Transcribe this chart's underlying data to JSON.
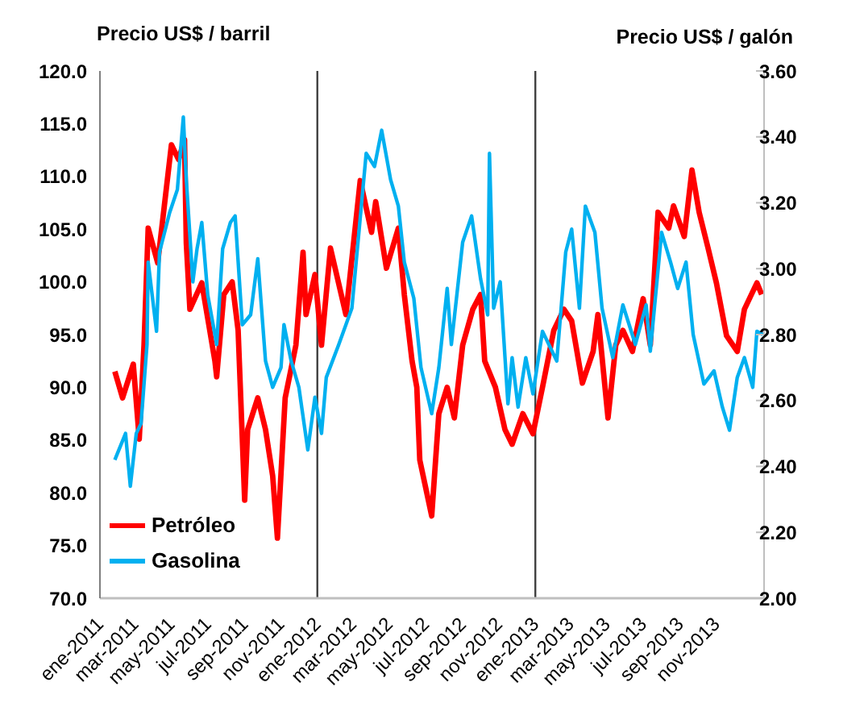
{
  "chart_data": {
    "type": "line",
    "ylabel": "Precio US$ / barril",
    "y2label": "Precio US$ / galón",
    "xlim": [
      "2011-01-01",
      "2014-01-20"
    ],
    "xticks": [
      {
        "value": "2011-01",
        "label": "ene-2011"
      },
      {
        "value": "2011-03",
        "label": "mar-2011"
      },
      {
        "value": "2011-05",
        "label": "may-2011"
      },
      {
        "value": "2011-07",
        "label": "jul-2011"
      },
      {
        "value": "2011-09",
        "label": "sep-2011"
      },
      {
        "value": "2011-11",
        "label": "nov-2011"
      },
      {
        "value": "2012-01",
        "label": "ene-2012"
      },
      {
        "value": "2012-03",
        "label": "mar-2012"
      },
      {
        "value": "2012-05",
        "label": "may-2012"
      },
      {
        "value": "2012-07",
        "label": "jul-2012"
      },
      {
        "value": "2012-09",
        "label": "sep-2012"
      },
      {
        "value": "2012-11",
        "label": "nov-2012"
      },
      {
        "value": "2013-01",
        "label": "ene-2013"
      },
      {
        "value": "2013-03",
        "label": "mar-2013"
      },
      {
        "value": "2013-05",
        "label": "may-2013"
      },
      {
        "value": "2013-07",
        "label": "jul-2013"
      },
      {
        "value": "2013-09",
        "label": "sep-2013"
      },
      {
        "value": "2013-11",
        "label": "nov-2013"
      }
    ],
    "ylim": [
      70,
      120
    ],
    "yticks": [
      {
        "value": 70,
        "label": "70.0"
      },
      {
        "value": 75,
        "label": "75.0"
      },
      {
        "value": 80,
        "label": "80.0"
      },
      {
        "value": 85,
        "label": "85.0"
      },
      {
        "value": 90,
        "label": "90.0"
      },
      {
        "value": 95,
        "label": "95.0"
      },
      {
        "value": 100,
        "label": "100.0"
      },
      {
        "value": 105,
        "label": "105.0"
      },
      {
        "value": 110,
        "label": "110.0"
      },
      {
        "value": 115,
        "label": "115.0"
      },
      {
        "value": 120,
        "label": "120.0"
      }
    ],
    "y2lim": [
      2,
      3.6
    ],
    "y2ticks": [
      {
        "value": 2,
        "label": "2.00"
      },
      {
        "value": 2.2,
        "label": "2.20"
      },
      {
        "value": 2.4,
        "label": "2.40"
      },
      {
        "value": 2.6,
        "label": "2.60"
      },
      {
        "value": 2.8,
        "label": "2.80"
      },
      {
        "value": 3,
        "label": "3.00"
      },
      {
        "value": 3.2,
        "label": "3.20"
      },
      {
        "value": 3.4,
        "label": "3.40"
      },
      {
        "value": 3.6,
        "label": "3.60"
      }
    ],
    "ref_lines": [
      {
        "axis": "x",
        "value": "2012-01",
        "color": "#404040"
      },
      {
        "axis": "x",
        "value": "2013-01",
        "color": "#404040"
      }
    ],
    "grid": false,
    "legend": "bottom left",
    "marker": "none",
    "line_style": "solid",
    "series": [
      {
        "name": "Petróleo",
        "color": "#ff0000",
        "x": [
          "2011-01-26",
          "2011-02-08",
          "2011-02-26",
          "2011-03-08",
          "2011-03-16",
          "2011-03-23",
          "2011-04-08",
          "2011-05-01",
          "2011-05-13",
          "2011-05-23",
          "2011-05-26",
          "2011-06-01",
          "2011-06-21",
          "2011-07-13",
          "2011-07-16",
          "2011-07-28",
          "2011-08-11",
          "2011-08-21",
          "2011-09-01",
          "2011-09-06",
          "2011-09-23",
          "2011-10-06",
          "2011-10-18",
          "2011-10-26",
          "2011-11-08",
          "2011-11-26",
          "2011-12-08",
          "2011-12-13",
          "2011-12-28",
          "2012-01-08",
          "2012-01-23",
          "2012-02-18",
          "2012-03-13",
          "2012-04-01",
          "2012-04-08",
          "2012-04-26",
          "2012-05-16",
          "2012-05-26",
          "2012-06-08",
          "2012-06-16",
          "2012-06-21",
          "2012-07-11",
          "2012-07-23",
          "2012-08-06",
          "2012-08-18",
          "2012-09-01",
          "2012-09-18",
          "2012-10-01",
          "2012-10-08",
          "2012-10-26",
          "2012-11-11",
          "2012-11-23",
          "2012-12-11",
          "2012-12-28",
          "2013-01-13",
          "2013-02-01",
          "2013-02-18",
          "2013-03-03",
          "2013-03-21",
          "2013-04-08",
          "2013-04-16",
          "2013-05-03",
          "2013-05-16",
          "2013-05-28",
          "2013-06-13",
          "2013-07-01",
          "2013-07-13",
          "2013-07-26",
          "2013-08-13",
          "2013-08-21",
          "2013-09-08",
          "2013-09-21",
          "2013-10-03",
          "2013-10-18",
          "2013-11-01",
          "2013-11-18",
          "2013-12-06",
          "2013-12-18",
          "2014-01-08",
          "2014-01-16"
        ],
        "values": [
          91.5,
          89,
          92.2,
          85.1,
          94,
          105.1,
          101.8,
          113,
          111.6,
          113.5,
          103.7,
          97.4,
          99.9,
          92.5,
          91,
          98.8,
          100,
          95.4,
          79.3,
          86,
          89,
          86,
          81.6,
          75.7,
          89,
          94,
          102.8,
          96.9,
          100.7,
          94,
          103.2,
          96.9,
          109.6,
          104.7,
          107.6,
          101.3,
          105.1,
          98.8,
          92.5,
          90,
          83.1,
          77.8,
          87.5,
          90,
          87.1,
          94,
          97.4,
          98.8,
          92.5,
          90,
          86,
          84.6,
          87.5,
          85.6,
          90,
          95.4,
          97.4,
          96.3,
          90.4,
          93.4,
          96.9,
          87.1,
          94,
          95.4,
          93.4,
          98.4,
          94,
          106.6,
          105.1,
          107.2,
          104.3,
          110.6,
          106.6,
          103.2,
          99.9,
          94.9,
          93.4,
          97.4,
          99.9,
          98.8
        ]
      },
      {
        "name": "Gasolina",
        "color": "#00b0f0",
        "axis": "y2",
        "x": [
          "2011-01-26",
          "2011-02-13",
          "2011-02-21",
          "2011-03-03",
          "2011-03-11",
          "2011-03-21",
          "2011-03-23",
          "2011-04-06",
          "2011-04-11",
          "2011-04-28",
          "2011-05-11",
          "2011-05-21",
          "2011-05-26",
          "2011-06-06",
          "2011-06-13",
          "2011-06-21",
          "2011-07-01",
          "2011-07-16",
          "2011-07-26",
          "2011-08-08",
          "2011-08-16",
          "2011-08-28",
          "2011-09-11",
          "2011-09-23",
          "2011-10-06",
          "2011-10-18",
          "2011-11-01",
          "2011-11-06",
          "2011-11-18",
          "2011-12-01",
          "2011-12-16",
          "2011-12-28",
          "2012-01-08",
          "2012-01-16",
          "2012-02-06",
          "2012-02-28",
          "2012-03-23",
          "2012-04-06",
          "2012-04-18",
          "2012-05-03",
          "2012-05-16",
          "2012-05-26",
          "2012-06-11",
          "2012-06-23",
          "2012-07-11",
          "2012-07-23",
          "2012-08-06",
          "2012-08-13",
          "2012-09-01",
          "2012-09-16",
          "2012-10-01",
          "2012-10-13",
          "2012-10-16",
          "2012-10-23",
          "2012-11-03",
          "2012-11-16",
          "2012-11-23",
          "2012-12-03",
          "2012-12-16",
          "2012-12-28",
          "2013-01-13",
          "2013-02-06",
          "2013-02-21",
          "2013-03-03",
          "2013-03-16",
          "2013-03-26",
          "2013-04-11",
          "2013-04-23",
          "2013-05-11",
          "2013-05-28",
          "2013-06-18",
          "2013-07-06",
          "2013-07-13",
          "2013-08-01",
          "2013-08-16",
          "2013-08-28",
          "2013-09-11",
          "2013-09-23",
          "2013-10-11",
          "2013-10-28",
          "2013-11-11",
          "2013-11-23",
          "2013-12-06",
          "2013-12-18",
          "2014-01-01",
          "2014-01-08",
          "2014-01-18"
        ],
        "values": [
          2.42,
          2.5,
          2.34,
          2.5,
          2.53,
          2.77,
          3.02,
          2.81,
          3.05,
          3.17,
          3.24,
          3.46,
          3.27,
          2.96,
          3.06,
          3.14,
          2.92,
          2.77,
          3.06,
          3.14,
          3.16,
          2.83,
          2.86,
          3.03,
          2.72,
          2.64,
          2.7,
          2.83,
          2.72,
          2.64,
          2.45,
          2.61,
          2.5,
          2.67,
          2.77,
          2.88,
          3.35,
          3.31,
          3.42,
          3.27,
          3.19,
          3.02,
          2.91,
          2.7,
          2.56,
          2.7,
          2.94,
          2.77,
          3.08,
          3.16,
          2.97,
          2.86,
          3.35,
          2.88,
          2.96,
          2.59,
          2.73,
          2.58,
          2.73,
          2.62,
          2.81,
          2.72,
          3.05,
          3.12,
          2.88,
          3.19,
          3.11,
          2.88,
          2.73,
          2.89,
          2.77,
          2.89,
          2.75,
          3.11,
          3.02,
          2.94,
          3.02,
          2.8,
          2.65,
          2.69,
          2.58,
          2.51,
          2.67,
          2.73,
          2.64,
          2.81,
          2.8
        ]
      }
    ]
  }
}
